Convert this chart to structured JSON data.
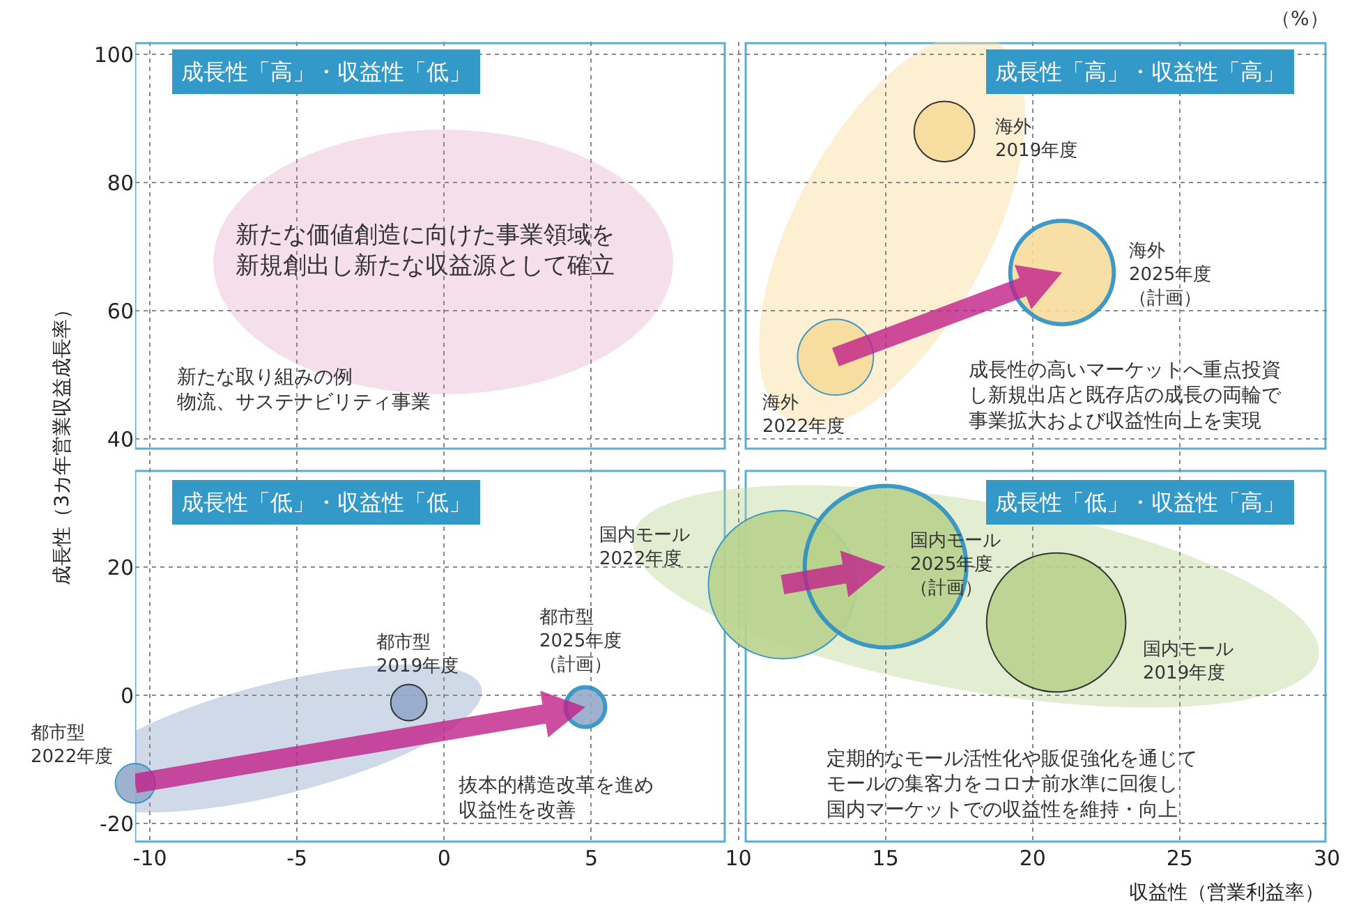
{
  "chart_data": {
    "type": "bubble",
    "xlabel": "収益性（営業利益率）",
    "ylabel": "成長性（3カ年営業収益成長率）",
    "xlim": [
      -10.5,
      30
    ],
    "ylim": [
      -23,
      102
    ],
    "xticks": [
      -10,
      -5,
      0,
      5,
      10,
      15,
      20,
      25,
      30
    ],
    "yticks": [
      -20,
      0,
      20,
      40,
      60,
      80,
      100
    ],
    "grid": true,
    "series": [
      {
        "color": "#f8dc9c",
        "x": [
          17,
          13.3,
          21
        ],
        "values": [
          88,
          52.8,
          66
        ],
        "sizes": [
          0.14,
          0.22,
          0.41
        ]
      },
      {
        "color": "#b9d38e",
        "x": [
          20.8,
          11.5,
          15
        ],
        "values": [
          11.4,
          17.3,
          20.1
        ],
        "sizes": [
          0.74,
          0.84,
          1
        ]
      },
      {
        "color": "#94aacb",
        "x": [
          -1.2,
          -10.5,
          4.8
        ],
        "values": [
          -1.1,
          -13.7,
          -1.8
        ],
        "sizes": [
          0.05,
          0.06,
          0.06
        ]
      }
    ],
    "annotations": [
      "成長性「高」・収益性「低」",
      "成長性「高」・収益性「高」",
      "成長性「低」・収益性「低」",
      "成長性「低」・収益性「高」",
      "新たな価値創造に向けた事業領域を新規創出し新たな収益源として確立",
      "新たな取り組みの例物流、サステナビリティ事業",
      "成長性の高いマーケットへ重点投資し新規出店と既存店の成長の両輪で事業拡大および収益性向上を実現",
      "抜本的構造改革を進め収益性を改善",
      "定期的なモール活性化や販促強化を通じてモールの集客力をコロナ前水準に回復し国内マーケットでの収益性を維持・向上",
      "（%）",
      "海外2019年度",
      "海外2022年度",
      "海外2025年度（計画）",
      "国内モール2019年度",
      "国内モール2022年度",
      "国内モール2025年度（計画）",
      "都市型2019年度",
      "都市型2022年度",
      "都市型2025年度（計画）"
    ]
  }
}
